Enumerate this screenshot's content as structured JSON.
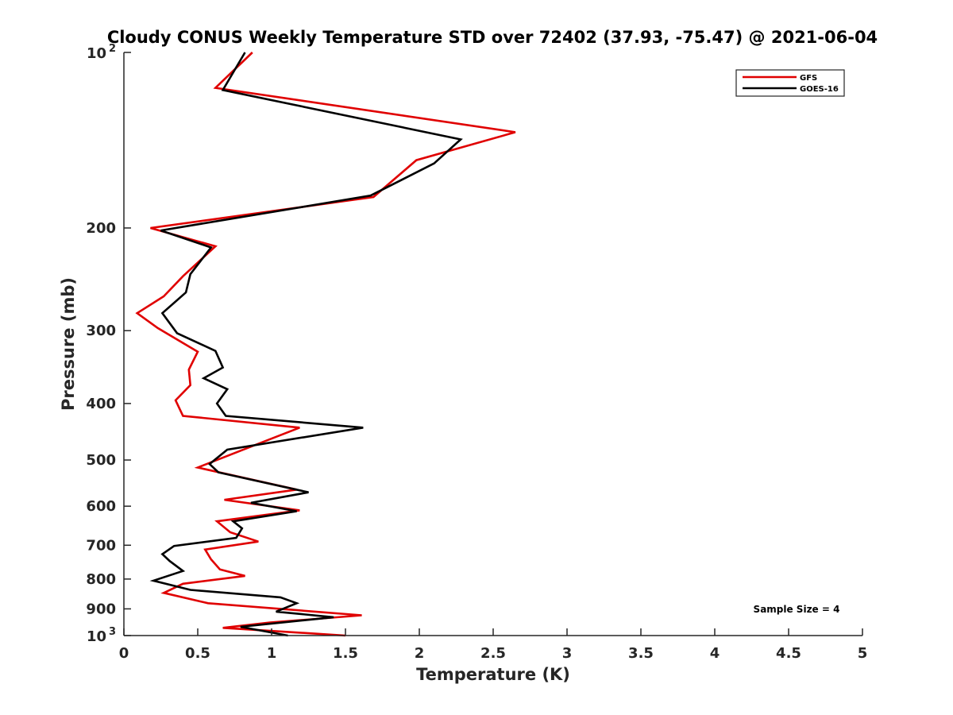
{
  "chart_data": {
    "type": "line",
    "title": "Cloudy CONUS Weekly Temperature STD over 72402 (37.93, -75.47) @ 2021-06-04",
    "xlabel": "Temperature (K)",
    "ylabel": "Pressure (mb)",
    "xlim": [
      0,
      5
    ],
    "ylim": [
      100,
      1000
    ],
    "yscale": "log",
    "y_reversed": true,
    "x_ticks": [
      "0",
      "0.5",
      "1",
      "1.5",
      "2",
      "2.5",
      "3",
      "3.5",
      "4",
      "4.5",
      "5"
    ],
    "y_ticks": [
      {
        "value": 200,
        "label": "200"
      },
      {
        "value": 300,
        "label": "300"
      },
      {
        "value": 400,
        "label": "400"
      },
      {
        "value": 500,
        "label": "500"
      },
      {
        "value": 600,
        "label": "600"
      },
      {
        "value": 700,
        "label": "700"
      },
      {
        "value": 800,
        "label": "800"
      },
      {
        "value": 900,
        "label": "900"
      }
    ],
    "y_tick_power_labels": [
      {
        "value": 100,
        "base": "10",
        "exp": "2"
      },
      {
        "value": 1000,
        "base": "10",
        "exp": "3"
      }
    ],
    "legend_position": "top-right",
    "grid": false,
    "annotation": "Sample Size = 4",
    "series": [
      {
        "name": "GFS",
        "color": "#e00000",
        "points": [
          [
            0.87,
            100
          ],
          [
            0.62,
            115
          ],
          [
            2.65,
            137
          ],
          [
            1.98,
            153
          ],
          [
            1.69,
            177
          ],
          [
            0.18,
            200
          ],
          [
            0.62,
            215
          ],
          [
            0.4,
            242
          ],
          [
            0.27,
            262
          ],
          [
            0.09,
            280
          ],
          [
            0.23,
            297
          ],
          [
            0.5,
            326
          ],
          [
            0.44,
            350
          ],
          [
            0.45,
            372
          ],
          [
            0.35,
            395
          ],
          [
            0.4,
            420
          ],
          [
            1.19,
            440
          ],
          [
            0.9,
            470
          ],
          [
            0.5,
            515
          ],
          [
            1.17,
            562
          ],
          [
            0.68,
            585
          ],
          [
            1.19,
            610
          ],
          [
            0.63,
            637
          ],
          [
            0.72,
            665
          ],
          [
            0.91,
            690
          ],
          [
            0.55,
            712
          ],
          [
            0.59,
            740
          ],
          [
            0.65,
            770
          ],
          [
            0.82,
            790
          ],
          [
            0.4,
            815
          ],
          [
            0.27,
            845
          ],
          [
            0.57,
            880
          ],
          [
            1.61,
            923
          ],
          [
            0.99,
            950
          ],
          [
            0.67,
            970
          ],
          [
            1.5,
            1000
          ]
        ]
      },
      {
        "name": "GOES-16",
        "color": "#000000",
        "points": [
          [
            0.82,
            100
          ],
          [
            0.67,
            116
          ],
          [
            2.28,
            141
          ],
          [
            2.1,
            155
          ],
          [
            1.67,
            176
          ],
          [
            0.25,
            202
          ],
          [
            0.59,
            216
          ],
          [
            0.45,
            240
          ],
          [
            0.42,
            258
          ],
          [
            0.26,
            280
          ],
          [
            0.36,
            303
          ],
          [
            0.62,
            325
          ],
          [
            0.67,
            347
          ],
          [
            0.54,
            362
          ],
          [
            0.7,
            378
          ],
          [
            0.63,
            400
          ],
          [
            0.69,
            420
          ],
          [
            1.62,
            440
          ],
          [
            0.7,
            480
          ],
          [
            0.58,
            508
          ],
          [
            0.64,
            525
          ],
          [
            1.25,
            568
          ],
          [
            0.86,
            592
          ],
          [
            1.17,
            612
          ],
          [
            0.74,
            637
          ],
          [
            0.8,
            655
          ],
          [
            0.76,
            680
          ],
          [
            0.34,
            702
          ],
          [
            0.26,
            725
          ],
          [
            0.31,
            745
          ],
          [
            0.4,
            775
          ],
          [
            0.2,
            805
          ],
          [
            0.45,
            835
          ],
          [
            1.06,
            860
          ],
          [
            1.17,
            880
          ],
          [
            1.03,
            910
          ],
          [
            1.42,
            930
          ],
          [
            0.79,
            966
          ],
          [
            1.11,
            1000
          ]
        ]
      }
    ]
  }
}
